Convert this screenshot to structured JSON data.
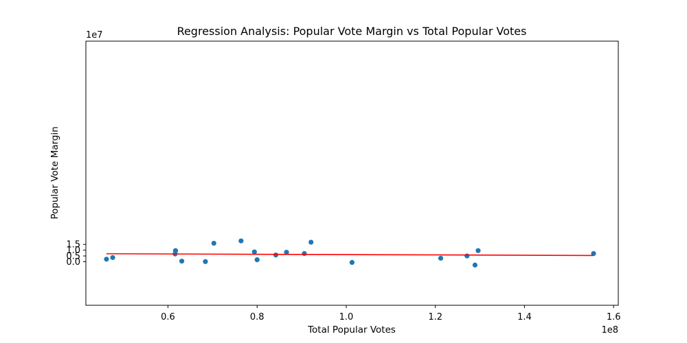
{
  "chart_data": {
    "type": "scatter",
    "title": "Regression Analysis: Popular Vote Margin vs Total Popular Votes",
    "xlabel": "Total Popular Votes",
    "ylabel": "Popular Vote Margin",
    "x_scale_label": "1e8",
    "y_scale_label": "1e7",
    "x_unit_multiplier": 100000000,
    "y_unit_multiplier": 10000000,
    "xlim": [
      0.4158,
      1.6105
    ],
    "ylim": [
      -3.77,
      19.09
    ],
    "x_ticks": [
      0.6,
      0.8,
      1.0,
      1.2,
      1.4,
      1.6
    ],
    "x_tick_labels": [
      "0.6",
      "0.8",
      "1.0",
      "1.2",
      "1.4",
      "1.6"
    ],
    "y_ticks": [
      0.0,
      0.5,
      1.0,
      1.5
    ],
    "y_tick_labels": [
      "0.0",
      "0.5",
      "1.0",
      "1.5"
    ],
    "grid": false,
    "legend": "none",
    "points": {
      "color": "#1f77b4",
      "x": [
        0.462,
        0.476,
        0.616,
        0.617,
        0.631,
        0.684,
        0.703,
        0.764,
        0.794,
        0.8,
        0.842,
        0.866,
        0.906,
        0.921,
        1.013,
        1.212,
        1.271,
        1.289,
        1.296,
        1.555
      ],
      "y": [
        0.22,
        0.36,
        0.67,
        0.96,
        0.05,
        0.01,
        1.6,
        1.8,
        0.85,
        0.17,
        0.58,
        0.82,
        0.71,
        1.69,
        -0.06,
        0.3,
        0.5,
        -0.29,
        0.96,
        0.71
      ]
    },
    "regression_line": {
      "color": "#ff0000",
      "x": [
        0.462,
        1.555
      ],
      "y": [
        0.69,
        0.54
      ]
    }
  }
}
